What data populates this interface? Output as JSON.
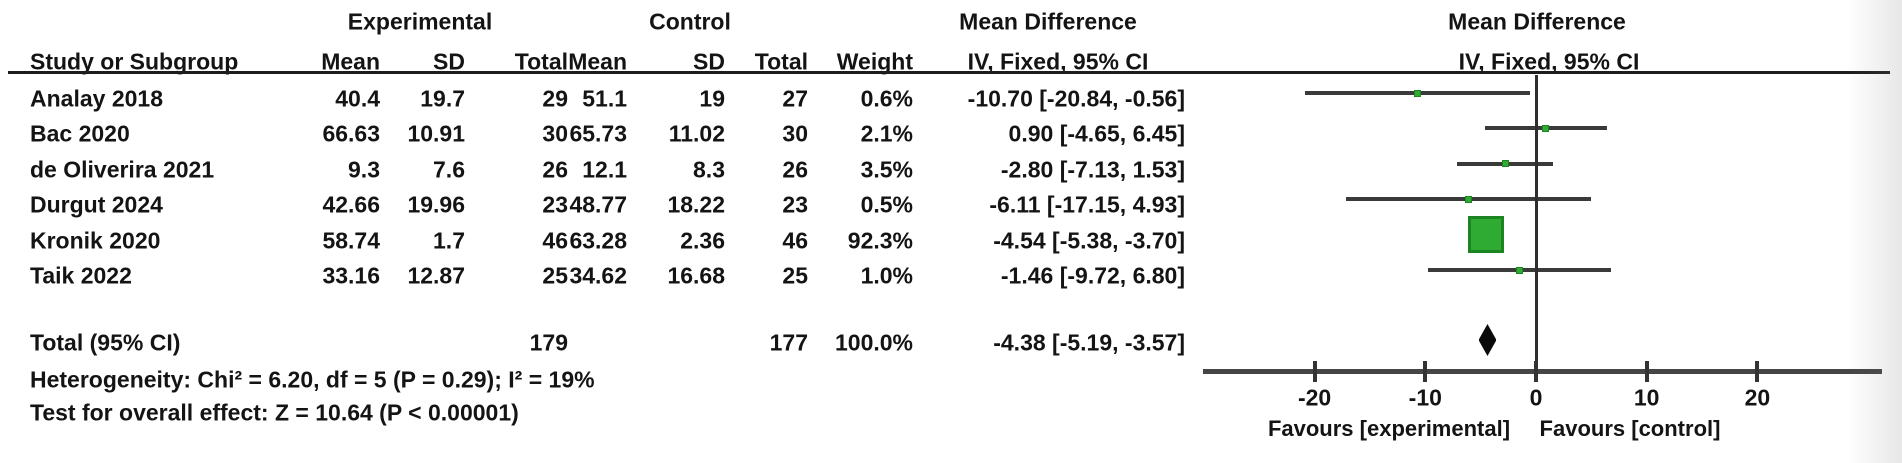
{
  "group_headers": {
    "experimental": "Experimental",
    "control": "Control",
    "mean_difference_text": "Mean Difference",
    "mean_difference_plot": "Mean Difference"
  },
  "column_headers": {
    "study": "Study or Subgroup",
    "exp_mean": "Mean",
    "exp_sd": "SD",
    "exp_total": "Total",
    "ctrl_mean": "Mean",
    "ctrl_sd": "SD",
    "ctrl_total": "Total",
    "weight": "Weight",
    "iv_text": "IV, Fixed, 95% CI",
    "iv_plot": "IV, Fixed, 95% CI"
  },
  "chart_data": {
    "type": "forest",
    "effect_measure": "Mean Difference",
    "model": "IV, Fixed, 95% CI",
    "studies": [
      {
        "study": "Analay 2018",
        "exp_mean": "40.4",
        "exp_sd": "19.7",
        "exp_total": "29",
        "ctrl_mean": "51.1",
        "ctrl_sd": "19",
        "ctrl_total": "27",
        "weight": "0.6%",
        "weight_pct": 0.6,
        "md": -10.7,
        "ci_low": -20.84,
        "ci_high": -0.56,
        "ci_label": "-10.70 [-20.84, -0.56]"
      },
      {
        "study": "Bac 2020",
        "exp_mean": "66.63",
        "exp_sd": "10.91",
        "exp_total": "30",
        "ctrl_mean": "65.73",
        "ctrl_sd": "11.02",
        "ctrl_total": "30",
        "weight": "2.1%",
        "weight_pct": 2.1,
        "md": 0.9,
        "ci_low": -4.65,
        "ci_high": 6.45,
        "ci_label": "0.90 [-4.65, 6.45]"
      },
      {
        "study": "de Oliverira 2021",
        "exp_mean": "9.3",
        "exp_sd": "7.6",
        "exp_total": "26",
        "ctrl_mean": "12.1",
        "ctrl_sd": "8.3",
        "ctrl_total": "26",
        "weight": "3.5%",
        "weight_pct": 3.5,
        "md": -2.8,
        "ci_low": -7.13,
        "ci_high": 1.53,
        "ci_label": "-2.80 [-7.13, 1.53]"
      },
      {
        "study": "Durgut 2024",
        "exp_mean": "42.66",
        "exp_sd": "19.96",
        "exp_total": "23",
        "ctrl_mean": "48.77",
        "ctrl_sd": "18.22",
        "ctrl_total": "23",
        "weight": "0.5%",
        "weight_pct": 0.5,
        "md": -6.11,
        "ci_low": -17.15,
        "ci_high": 4.93,
        "ci_label": "-6.11 [-17.15, 4.93]"
      },
      {
        "study": "Kronik 2020",
        "exp_mean": "58.74",
        "exp_sd": "1.7",
        "exp_total": "46",
        "ctrl_mean": "63.28",
        "ctrl_sd": "2.36",
        "ctrl_total": "46",
        "weight": "92.3%",
        "weight_pct": 92.3,
        "md": -4.54,
        "ci_low": -5.38,
        "ci_high": -3.7,
        "ci_label": "-4.54 [-5.38, -3.70]"
      },
      {
        "study": "Taik 2022",
        "exp_mean": "33.16",
        "exp_sd": "12.87",
        "exp_total": "25",
        "ctrl_mean": "34.62",
        "ctrl_sd": "16.68",
        "ctrl_total": "25",
        "weight": "1.0%",
        "weight_pct": 1.0,
        "md": -1.46,
        "ci_low": -9.72,
        "ci_high": 6.8,
        "ci_label": "-1.46 [-9.72, 6.80]"
      }
    ],
    "total": {
      "label": "Total (95% CI)",
      "exp_total": "179",
      "ctrl_total": "177",
      "weight": "100.0%",
      "md": -4.38,
      "ci_low": -5.19,
      "ci_high": -3.57,
      "ci_label": "-4.38 [-5.19, -3.57]"
    },
    "footer": {
      "heterogeneity": "Heterogeneity: Chi² = 6.20, df = 5 (P = 0.29); I² = 19%",
      "overall_effect": "Test for overall effect: Z = 10.64 (P < 0.00001)"
    },
    "x_axis": {
      "ticks": [
        -20,
        -10,
        0,
        10,
        20
      ],
      "tick_labels": [
        "-20",
        "-10",
        "0",
        "10",
        "20"
      ],
      "xlim": [
        -30,
        31
      ],
      "zero_line": 0,
      "label_left": "Favours [experimental]",
      "label_right": "Favours [control]"
    }
  }
}
